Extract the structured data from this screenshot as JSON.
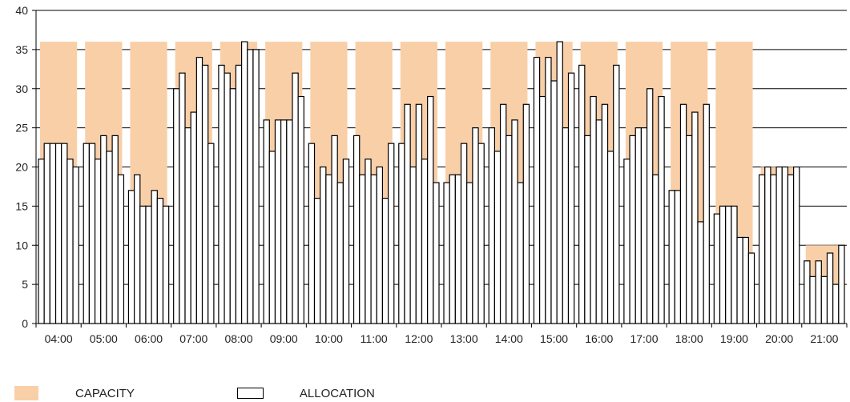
{
  "chart_data": {
    "type": "bar",
    "categories": [
      "04:00",
      "05:00",
      "06:00",
      "07:00",
      "08:00",
      "09:00",
      "10:00",
      "11:00",
      "12:00",
      "13:00",
      "14:00",
      "15:00",
      "16:00",
      "17:00",
      "18:00",
      "19:00",
      "20:00",
      "21:00"
    ],
    "y_ticks": [
      "0",
      "5",
      "10",
      "15",
      "20",
      "25",
      "30",
      "35",
      "40"
    ],
    "ylim": [
      0,
      40
    ],
    "grid": "horizontal",
    "legend_position": "bottom-left",
    "series": [
      {
        "name": "CAPACITY",
        "type": "area-band",
        "color": "#f9cfa8",
        "values": [
          36,
          36,
          36,
          36,
          36,
          36,
          36,
          36,
          36,
          36,
          36,
          36,
          36,
          36,
          36,
          36,
          20,
          10
        ]
      },
      {
        "name": "ALLOCATION",
        "type": "bar",
        "color": "#ffffff",
        "stroke": "#000000",
        "values": [
          [
            21,
            23,
            23,
            23,
            23,
            21,
            20
          ],
          [
            23,
            23,
            21,
            24,
            22,
            24,
            19
          ],
          [
            17,
            19,
            15,
            15,
            17,
            16,
            15
          ],
          [
            30,
            32,
            25,
            27,
            34,
            33,
            23
          ],
          [
            33,
            32,
            30,
            33,
            36,
            35,
            35
          ],
          [
            26,
            22,
            26,
            26,
            26,
            32,
            29
          ],
          [
            23,
            16,
            20,
            19,
            24,
            18,
            21
          ],
          [
            24,
            19,
            21,
            19,
            20,
            16,
            23
          ],
          [
            23,
            28,
            20,
            28,
            21,
            29,
            18
          ],
          [
            18,
            19,
            19,
            23,
            18,
            25,
            23
          ],
          [
            25,
            22,
            28,
            24,
            26,
            18,
            28
          ],
          [
            34,
            29,
            34,
            31,
            36,
            25,
            32
          ],
          [
            33,
            24,
            29,
            26,
            28,
            22,
            33
          ],
          [
            21,
            24,
            25,
            25,
            30,
            19,
            29
          ],
          [
            17,
            17,
            28,
            24,
            27,
            13,
            28
          ],
          [
            14,
            15,
            15,
            15,
            11,
            11,
            9
          ],
          [
            19,
            20,
            19,
            20,
            20,
            19,
            20
          ],
          [
            8,
            6,
            8,
            6,
            9,
            5,
            10
          ]
        ]
      }
    ]
  },
  "legend": {
    "capacity_label": "CAPACITY",
    "allocation_label": "ALLOCATION"
  }
}
